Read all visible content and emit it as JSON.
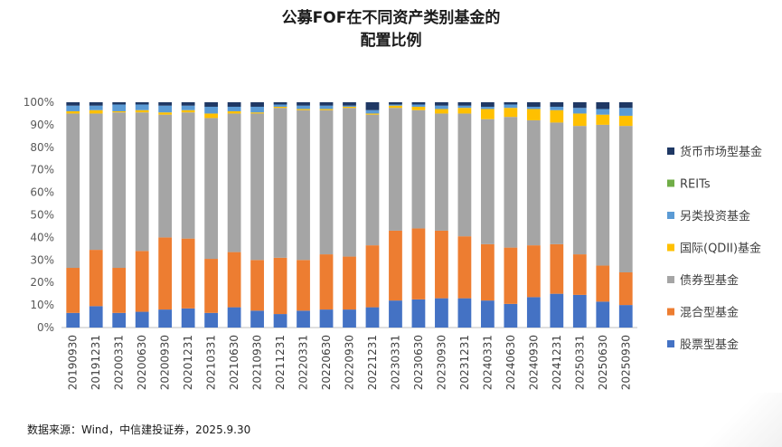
{
  "chart_data": {
    "type": "bar",
    "stacked": true,
    "title_line1": "公募FOF在不同资产类别基金的",
    "title_line2": "配置比例",
    "ylim": [
      0,
      100
    ],
    "y_ticks": [
      "0%",
      "10%",
      "20%",
      "30%",
      "40%",
      "50%",
      "60%",
      "70%",
      "80%",
      "90%",
      "100%"
    ],
    "categories": [
      "20190930",
      "20191231",
      "20200331",
      "20200630",
      "20200930",
      "20201231",
      "20210331",
      "20210630",
      "20210930",
      "20211231",
      "20220331",
      "20220630",
      "20220930",
      "20221231",
      "20230331",
      "20230630",
      "20230930",
      "20231231",
      "20240331",
      "20240630",
      "20240930",
      "20241231",
      "20250331",
      "20250630",
      "20250930"
    ],
    "series": [
      {
        "name": "股票型基金",
        "color": "#4472C4",
        "values": [
          6.5,
          9.5,
          6.5,
          7,
          8,
          8.5,
          6.5,
          9,
          7.5,
          6,
          7.5,
          8,
          8,
          9,
          12,
          12.5,
          13,
          13,
          12,
          10.5,
          13.5,
          15,
          14.5,
          11.5,
          10
        ]
      },
      {
        "name": "混合型基金",
        "color": "#ED7D31",
        "values": [
          20,
          25,
          20,
          27,
          32,
          31,
          24,
          24.5,
          22.5,
          25,
          22.5,
          24.5,
          23.5,
          27.5,
          31,
          31.5,
          30,
          27.5,
          25,
          25,
          23,
          22,
          18,
          16,
          14.5
        ]
      },
      {
        "name": "债券型基金",
        "color": "#A5A5A5",
        "values": [
          68.5,
          60.5,
          69,
          61.5,
          54.5,
          56,
          62.5,
          61.5,
          65,
          66.5,
          66.5,
          64,
          66,
          58,
          54.5,
          52.5,
          52,
          54.5,
          55.5,
          58,
          55.5,
          54,
          57,
          62.5,
          65
        ]
      },
      {
        "name": "国际(QDII)基金",
        "color": "#FFC000",
        "values": [
          1,
          1.5,
          0.5,
          1,
          1,
          1,
          2,
          1,
          0.5,
          0.5,
          0.5,
          0.5,
          0.5,
          0.5,
          1,
          1.5,
          2,
          2.5,
          4.5,
          4,
          5,
          5.5,
          5.5,
          4.5,
          4.5
        ]
      },
      {
        "name": "另类投资基金",
        "color": "#5B9BD5",
        "values": [
          2.5,
          2,
          3,
          2.5,
          3,
          2,
          3,
          2,
          2.5,
          1,
          1.5,
          1.5,
          0.5,
          1.5,
          0.5,
          1,
          1.5,
          1,
          1,
          1.5,
          1,
          1.5,
          2.5,
          2.5,
          3.5
        ]
      },
      {
        "name": "REITs",
        "color": "#70AD47",
        "values": [
          0,
          0,
          0,
          0,
          0,
          0,
          0,
          0,
          0,
          0,
          0,
          0,
          0,
          0,
          0,
          0,
          0,
          0,
          0,
          0,
          0,
          0,
          0,
          0,
          0
        ]
      },
      {
        "name": "货币市场型基金",
        "color": "#1F3864",
        "values": [
          1.5,
          1.5,
          1,
          1,
          1.5,
          1.5,
          2,
          2,
          2,
          1,
          1.5,
          1.5,
          1.5,
          3.5,
          1,
          1,
          1.5,
          1.5,
          2,
          1,
          2,
          2,
          2.5,
          3,
          2.5
        ]
      }
    ],
    "legend_order": [
      "货币市场型基金",
      "REITs",
      "另类投资基金",
      "国际(QDII)基金",
      "债券型基金",
      "混合型基金",
      "股票型基金"
    ],
    "legend_position": "right"
  },
  "footer": {
    "source": "数据来源：Wind，中信建投证券，2025.9.30"
  }
}
